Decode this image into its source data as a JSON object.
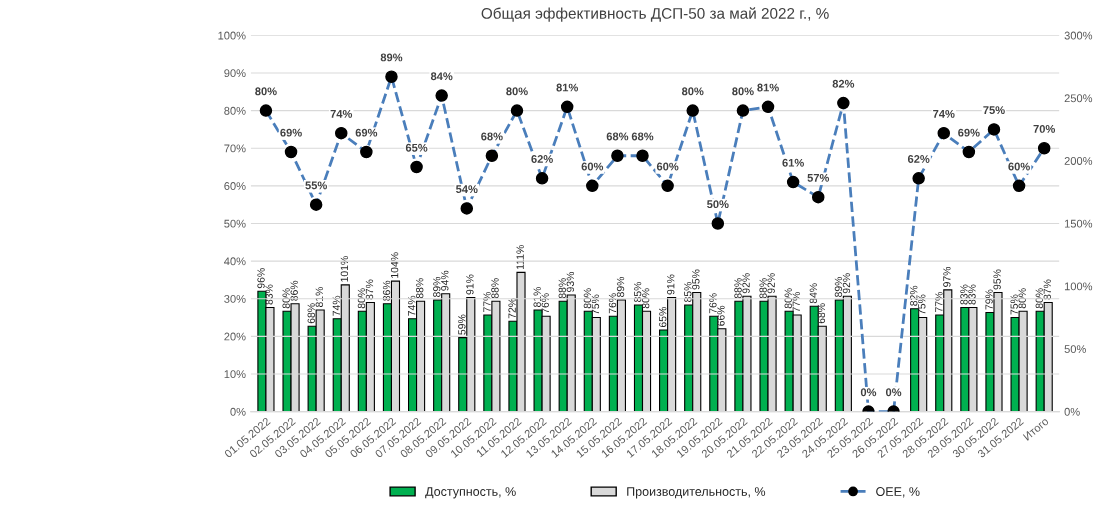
{
  "chart_data": {
    "type": "bar",
    "title": "Общая эффективность ДСП-50 за май 2022 г., %",
    "categories": [
      "01.05.2022",
      "02.05.2022",
      "03.05.2022",
      "04.05.2022",
      "05.05.2022",
      "06.05.2022",
      "07.05.2022",
      "08.05.2022",
      "09.05.2022",
      "10.05.2022",
      "11.05.2022",
      "12.05.2022",
      "13.05.2022",
      "14.05.2022",
      "15.05.2022",
      "16.05.2022",
      "17.05.2022",
      "18.05.2022",
      "19.05.2022",
      "20.05.2022",
      "21.05.2022",
      "22.05.2022",
      "23.05.2022",
      "24.05.2022",
      "25.05.2022",
      "26.05.2022",
      "27.05.2022",
      "28.05.2022",
      "29.05.2022",
      "30.05.2022",
      "31.05.2022",
      "Итого"
    ],
    "series": [
      {
        "name": "Доступность, %",
        "axis": "y2",
        "color": "#00b050",
        "values": [
          96,
          80,
          68,
          74,
          80,
          86,
          74,
          89,
          59,
          77,
          72,
          81,
          88,
          80,
          76,
          85,
          65,
          85,
          76,
          88,
          88,
          80,
          84,
          89,
          null,
          null,
          82,
          77,
          83,
          79,
          75,
          80
        ],
        "value_labels": [
          "96%",
          "80%",
          "68%",
          "74%",
          "80%",
          "86%",
          "74%",
          "89%",
          "59%",
          "77%",
          "72%",
          "81%",
          "88%",
          "80%",
          "76%",
          "85%",
          "65%",
          "85%",
          "76%",
          "88%",
          "88%",
          "80%",
          "84%",
          "89%",
          null,
          null,
          "82%",
          "77%",
          "83%",
          "79%",
          "75%",
          "80%"
        ]
      },
      {
        "name": "Производительность, %",
        "axis": "y2",
        "color": "#d9d9d9",
        "values": [
          83,
          86,
          81,
          101,
          87,
          104,
          88,
          94,
          91,
          88,
          111,
          76,
          93,
          75,
          89,
          80,
          91,
          95,
          66,
          92,
          92,
          77,
          68,
          92,
          null,
          null,
          75,
          97,
          83,
          95,
          80,
          87
        ],
        "value_labels": [
          "83%",
          "86%",
          "81%",
          "101%",
          "87%",
          "104%",
          "88%",
          "94%",
          "91%",
          "88%",
          "111%",
          "76%",
          "93%",
          "75%",
          "89%",
          "80%",
          "91%",
          "95%",
          "66%",
          "92%",
          "92%",
          "77%",
          "68%",
          "92%",
          null,
          null,
          "75%",
          "97%",
          "83%",
          "95%",
          "80%",
          "87%"
        ]
      },
      {
        "name": "OEE, %",
        "type": "line",
        "axis": "y",
        "color": "#4a7ebb",
        "marker": "circle",
        "line_style": "dashed",
        "values": [
          80,
          69,
          55,
          74,
          69,
          89,
          65,
          84,
          54,
          68,
          80,
          62,
          81,
          60,
          68,
          68,
          60,
          80,
          50,
          80,
          81,
          61,
          57,
          82,
          0,
          0,
          62,
          74,
          69,
          75,
          60,
          70
        ],
        "value_labels": [
          "80%",
          "69%",
          "55%",
          "74%",
          "69%",
          "89%",
          "65%",
          "84%",
          "54%",
          "68%",
          "80%",
          "62%",
          "81%",
          "60%",
          "68%",
          "68%",
          "60%",
          "80%",
          "50%",
          "80%",
          "81%",
          "61%",
          "57%",
          "82%",
          "0%",
          "0%",
          "62%",
          "74%",
          "69%",
          "75%",
          "60%",
          "70%"
        ]
      }
    ],
    "ylim": [
      0,
      100
    ],
    "yticks": [
      {
        "value": 0,
        "label": "0%"
      },
      {
        "value": 10,
        "label": "10%"
      },
      {
        "value": 20,
        "label": "20%"
      },
      {
        "value": 30,
        "label": "30%"
      },
      {
        "value": 40,
        "label": "40%"
      },
      {
        "value": 50,
        "label": "50%"
      },
      {
        "value": 60,
        "label": "60%"
      },
      {
        "value": 70,
        "label": "70%"
      },
      {
        "value": 80,
        "label": "80%"
      },
      {
        "value": 90,
        "label": "90%"
      },
      {
        "value": 100,
        "label": "100%"
      }
    ],
    "y2lim": [
      0,
      300
    ],
    "y2ticks": [
      {
        "value": 0,
        "label": "0%"
      },
      {
        "value": 50,
        "label": "50%"
      },
      {
        "value": 100,
        "label": "100%"
      },
      {
        "value": 150,
        "label": "150%"
      },
      {
        "value": 200,
        "label": "200%"
      },
      {
        "value": 250,
        "label": "250%"
      },
      {
        "value": 300,
        "label": "300%"
      }
    ],
    "grid": "y",
    "legend": "bottom"
  }
}
